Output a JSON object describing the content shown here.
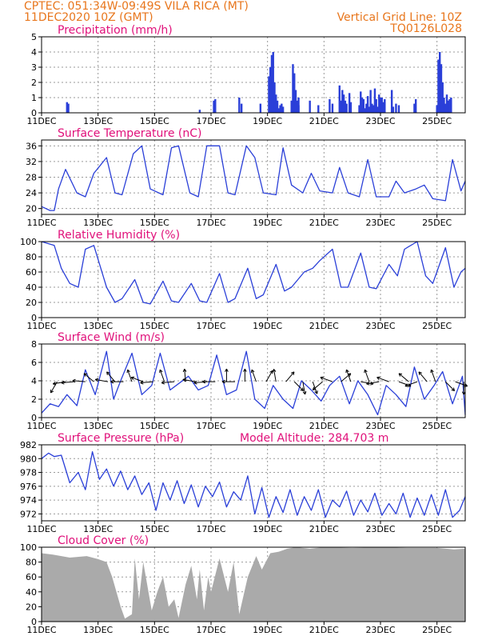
{
  "header": {
    "line1": "CPTEC:  051:34W-09:49S  VILA RICA (MT)",
    "line2": "11DEC2020 10Z (GMT)",
    "grid_note": "Vertical Grid Line: 10Z",
    "code": "TQ0126L028"
  },
  "colors": {
    "header": "#e8761c",
    "title": "#e0107a",
    "series": "#2a3fd8",
    "cloud": "#aaaaaa",
    "arrow": "#000000"
  },
  "chart_data": [
    {
      "id": "precip",
      "type": "bar",
      "title": "Precipitation (mm/h)",
      "ylim": [
        0,
        5
      ],
      "yticks": [
        0,
        1,
        2,
        3,
        4,
        5
      ],
      "xlim_days": [
        11.0,
        26.0
      ],
      "xtick_days": [
        11,
        13,
        15,
        17,
        19,
        21,
        23,
        25
      ],
      "xtick_labels": [
        "11DEC",
        "13DEC",
        "15DEC",
        "17DEC",
        "19DEC",
        "21DEC",
        "23DEC",
        "25DEC"
      ],
      "x": [
        11.9,
        11.95,
        16.6,
        17.1,
        17.15,
        18.0,
        18.08,
        18.75,
        19.05,
        19.1,
        19.15,
        19.2,
        19.25,
        19.3,
        19.35,
        19.4,
        19.45,
        19.5,
        19.55,
        19.85,
        19.9,
        19.95,
        20.0,
        20.05,
        20.1,
        20.1,
        20.5,
        20.8,
        21.2,
        21.3,
        21.55,
        21.6,
        21.65,
        21.7,
        21.75,
        21.8,
        21.9,
        21.95,
        22.25,
        22.3,
        22.35,
        22.4,
        22.45,
        22.5,
        22.55,
        22.6,
        22.65,
        22.7,
        22.75,
        22.8,
        22.85,
        22.9,
        22.95,
        23.0,
        23.05,
        23.1,
        23.15,
        23.4,
        23.45,
        23.55,
        23.65,
        24.2,
        24.25,
        25.0,
        25.05,
        25.1,
        25.15,
        25.2,
        25.25,
        25.3,
        25.35,
        25.4,
        25.45,
        25.5
      ],
      "values": [
        0.7,
        0.6,
        0.2,
        0.8,
        0.9,
        1.0,
        0.6,
        0.6,
        2.4,
        3.0,
        3.8,
        4.0,
        2.0,
        1.2,
        0.8,
        0.3,
        0.5,
        0.6,
        0.4,
        0.8,
        3.2,
        2.6,
        1.5,
        0.8,
        1.0,
        0.5,
        0.8,
        0.5,
        0.9,
        0.6,
        1.8,
        0.8,
        1.5,
        1.2,
        0.8,
        0.6,
        1.3,
        0.7,
        0.5,
        1.4,
        1.0,
        0.9,
        0.3,
        0.6,
        1.1,
        0.4,
        1.5,
        0.6,
        0.5,
        1.6,
        0.9,
        0.4,
        1.2,
        1.0,
        1.0,
        0.7,
        0.9,
        1.5,
        0.4,
        0.6,
        0.5,
        0.6,
        0.9,
        0.5,
        3.5,
        4.0,
        3.2,
        2.0,
        1.0,
        0.6,
        1.2,
        0.8,
        0.9,
        1.0
      ]
    },
    {
      "id": "temp",
      "type": "line",
      "title": "Surface Temperature (nC)",
      "ylim": [
        18.5,
        37.5
      ],
      "yticks": [
        20,
        24,
        28,
        32,
        36
      ],
      "xlim_days": [
        11.0,
        26.0
      ],
      "xtick_days": [
        11,
        13,
        15,
        17,
        19,
        21,
        23,
        25
      ],
      "xtick_labels": [
        "11DEC",
        "13DEC",
        "15DEC",
        "17DEC",
        "19DEC",
        "21DEC",
        "23DEC",
        "25DEC"
      ],
      "x": [
        11.0,
        11.3,
        11.45,
        11.6,
        11.85,
        12.25,
        12.55,
        12.85,
        13.3,
        13.6,
        13.85,
        14.25,
        14.55,
        14.85,
        15.3,
        15.6,
        15.85,
        16.25,
        16.55,
        16.85,
        17.3,
        17.6,
        17.85,
        18.25,
        18.55,
        18.85,
        19.3,
        19.55,
        19.85,
        20.25,
        20.55,
        20.85,
        21.3,
        21.55,
        21.85,
        22.25,
        22.55,
        22.85,
        23.3,
        23.55,
        23.85,
        24.25,
        24.55,
        24.85,
        25.3,
        25.55,
        25.85,
        26.0
      ],
      "values": [
        20.5,
        19.5,
        19.5,
        25.0,
        30.0,
        24.0,
        23.0,
        29.0,
        33.0,
        24.0,
        23.5,
        34.0,
        36.0,
        25.0,
        23.5,
        35.5,
        36.0,
        24.0,
        23.0,
        36.0,
        36.0,
        24.0,
        23.5,
        36.0,
        33.0,
        24.0,
        23.5,
        35.5,
        26.0,
        24.0,
        29.0,
        24.5,
        24.0,
        30.5,
        24.0,
        23.0,
        32.5,
        23.0,
        23.0,
        27.0,
        24.0,
        25.0,
        26.0,
        22.5,
        22.0,
        32.5,
        24.5,
        27.0
      ]
    },
    {
      "id": "rh",
      "type": "line",
      "title": "Relative Humidity (%)",
      "ylim": [
        0,
        100
      ],
      "yticks": [
        0,
        20,
        40,
        60,
        80,
        100
      ],
      "xlim_days": [
        11.0,
        26.0
      ],
      "xtick_days": [
        11,
        13,
        15,
        17,
        19,
        21,
        23,
        25
      ],
      "xtick_labels": [
        "11DEC",
        "13DEC",
        "15DEC",
        "17DEC",
        "19DEC",
        "21DEC",
        "23DEC",
        "25DEC"
      ],
      "x": [
        11.0,
        11.45,
        11.7,
        12.0,
        12.3,
        12.55,
        12.85,
        13.3,
        13.6,
        13.85,
        14.3,
        14.6,
        14.85,
        15.3,
        15.6,
        15.85,
        16.3,
        16.6,
        16.85,
        17.3,
        17.6,
        17.85,
        18.3,
        18.6,
        18.85,
        19.3,
        19.6,
        19.85,
        20.3,
        20.6,
        20.85,
        21.3,
        21.6,
        21.85,
        22.3,
        22.6,
        22.85,
        23.3,
        23.6,
        23.85,
        24.3,
        24.6,
        24.85,
        25.3,
        25.6,
        25.85,
        26.0
      ],
      "values": [
        100.0,
        95.0,
        65.0,
        45.0,
        40.0,
        90.0,
        95.0,
        40.0,
        20.0,
        25.0,
        50.0,
        20.0,
        18.0,
        48.0,
        22.0,
        20.0,
        45.0,
        22.0,
        20.0,
        58.0,
        20.0,
        25.0,
        65.0,
        25.0,
        30.0,
        70.0,
        35.0,
        40.0,
        60.0,
        65.0,
        75.0,
        90.0,
        40.0,
        40.0,
        85.0,
        40.0,
        38.0,
        70.0,
        55.0,
        90.0,
        100.0,
        55.0,
        45.0,
        92.0,
        40.0,
        60.0,
        65.0
      ]
    },
    {
      "id": "wind",
      "type": "line",
      "title": "Surface Wind (m/s)",
      "ylim": [
        0,
        8
      ],
      "yticks": [
        0,
        2,
        4,
        6,
        8
      ],
      "xlim_days": [
        11.0,
        26.0
      ],
      "xtick_days": [
        11,
        13,
        15,
        17,
        19,
        21,
        23,
        25
      ],
      "xtick_labels": [
        "11DEC",
        "13DEC",
        "15DEC",
        "17DEC",
        "19DEC",
        "21DEC",
        "23DEC",
        "25DEC"
      ],
      "x": [
        11.0,
        11.3,
        11.6,
        11.9,
        12.25,
        12.55,
        12.9,
        13.3,
        13.55,
        13.8,
        14.2,
        14.55,
        14.9,
        15.2,
        15.55,
        15.9,
        16.2,
        16.55,
        16.9,
        17.2,
        17.55,
        17.9,
        18.25,
        18.55,
        18.9,
        19.2,
        19.55,
        19.9,
        20.2,
        20.55,
        20.9,
        21.2,
        21.55,
        21.9,
        22.2,
        22.55,
        22.9,
        23.2,
        23.55,
        23.9,
        24.2,
        24.55,
        24.9,
        25.2,
        25.55,
        25.9,
        26.0
      ],
      "values": [
        0.5,
        1.5,
        1.2,
        2.5,
        1.3,
        5.2,
        2.5,
        7.2,
        2.0,
        4.0,
        7.0,
        2.5,
        3.5,
        7.0,
        3.0,
        3.8,
        4.5,
        3.0,
        3.5,
        6.8,
        2.5,
        3.0,
        7.2,
        2.0,
        1.0,
        3.5,
        2.0,
        1.0,
        4.0,
        3.0,
        1.8,
        3.5,
        4.5,
        1.5,
        4.0,
        2.5,
        0.3,
        3.5,
        2.5,
        1.2,
        5.5,
        2.0,
        3.5,
        5.0,
        1.5,
        4.5,
        0.3
      ],
      "arrows_x": [
        11.55,
        11.85,
        12.15,
        12.55,
        12.85,
        13.35,
        13.6,
        13.9,
        14.2,
        14.6,
        14.95,
        15.35,
        15.7,
        16.1,
        16.45,
        16.85,
        17.15,
        17.55,
        17.85,
        18.2,
        18.6,
        18.95,
        19.3,
        19.65,
        19.95,
        20.25,
        20.6,
        20.95,
        21.3,
        21.6,
        21.95,
        22.3,
        22.6,
        22.95,
        23.3,
        23.65,
        24.0,
        24.3,
        24.65,
        24.95,
        25.3,
        25.65,
        25.95
      ],
      "arrows_dir_deg": [
        120,
        170,
        175,
        185,
        220,
        190,
        230,
        180,
        250,
        200,
        175,
        250,
        175,
        265,
        190,
        175,
        180,
        270,
        180,
        270,
        250,
        300,
        260,
        310,
        45,
        80,
        70,
        140,
        200,
        320,
        250,
        10,
        250,
        170,
        200,
        20,
        220,
        160,
        230,
        250,
        45,
        20,
        90
      ]
    },
    {
      "id": "pres",
      "type": "line",
      "title": "Surface Pressure (hPa)",
      "annotation": "Model Altitude: 284.703 m",
      "ylim": [
        971,
        982
      ],
      "yticks": [
        972,
        974,
        976,
        978,
        980,
        982
      ],
      "xlim_days": [
        11.0,
        26.0
      ],
      "xtick_days": [
        11,
        13,
        15,
        17,
        19,
        21,
        23,
        25
      ],
      "xtick_labels": [
        "11DEC",
        "13DEC",
        "15DEC",
        "17DEC",
        "19DEC",
        "21DEC",
        "23DEC",
        "25DEC"
      ],
      "x": [
        11.0,
        11.25,
        11.45,
        11.7,
        12.0,
        12.3,
        12.55,
        12.8,
        13.05,
        13.3,
        13.55,
        13.8,
        14.05,
        14.3,
        14.55,
        14.8,
        15.05,
        15.3,
        15.55,
        15.8,
        16.05,
        16.3,
        16.55,
        16.8,
        17.05,
        17.3,
        17.55,
        17.8,
        18.05,
        18.3,
        18.55,
        18.8,
        19.05,
        19.3,
        19.55,
        19.8,
        20.05,
        20.3,
        20.55,
        20.8,
        21.05,
        21.3,
        21.55,
        21.8,
        22.05,
        22.3,
        22.55,
        22.8,
        23.05,
        23.3,
        23.55,
        23.8,
        24.05,
        24.3,
        24.55,
        24.8,
        25.05,
        25.3,
        25.55,
        25.8,
        26.0
      ],
      "values": [
        980.0,
        980.8,
        980.3,
        980.5,
        976.5,
        978.0,
        975.5,
        981.0,
        977.0,
        978.5,
        976.0,
        978.2,
        975.5,
        977.5,
        974.8,
        976.5,
        972.5,
        976.5,
        974.0,
        976.8,
        973.5,
        976.2,
        973.0,
        976.0,
        974.5,
        976.6,
        973.0,
        975.2,
        974.0,
        977.5,
        972.0,
        975.8,
        971.5,
        974.5,
        972.2,
        975.5,
        971.8,
        974.5,
        972.5,
        975.5,
        971.5,
        974.0,
        973.0,
        975.3,
        971.8,
        974.0,
        972.3,
        975.0,
        971.8,
        973.5,
        972.0,
        975.0,
        971.5,
        974.3,
        971.8,
        974.8,
        971.8,
        975.5,
        971.5,
        972.5,
        974.5
      ]
    },
    {
      "id": "cloud",
      "type": "area",
      "title": "Cloud Cover (%)",
      "ylim": [
        0,
        100
      ],
      "yticks": [
        0,
        20,
        40,
        60,
        80,
        100
      ],
      "xlim_days": [
        11.0,
        26.0
      ],
      "xtick_days": [
        11,
        13,
        15,
        17,
        19,
        21,
        23,
        25
      ],
      "xtick_labels": [
        "11DEC",
        "13DEC",
        "15DEC",
        "17DEC",
        "19DEC",
        "21DEC",
        "23DEC",
        "25DEC"
      ],
      "x": [
        11.0,
        11.4,
        12.0,
        12.6,
        13.0,
        13.3,
        13.5,
        13.8,
        13.95,
        14.2,
        14.3,
        14.45,
        14.6,
        14.9,
        15.1,
        15.3,
        15.5,
        15.7,
        15.85,
        16.1,
        16.3,
        16.5,
        16.6,
        16.75,
        16.9,
        17.0,
        17.3,
        17.6,
        17.8,
        18.0,
        18.3,
        18.6,
        18.8,
        19.1,
        19.4,
        19.7,
        20.0,
        20.5,
        21.0,
        22.0,
        23.0,
        24.0,
        25.0,
        25.6,
        26.0
      ],
      "values": [
        92,
        90,
        86,
        88,
        84,
        80,
        60,
        20,
        4,
        10,
        85,
        30,
        80,
        15,
        40,
        60,
        20,
        30,
        5,
        50,
        75,
        30,
        70,
        15,
        60,
        40,
        85,
        40,
        80,
        10,
        60,
        88,
        70,
        92,
        94,
        98,
        100,
        98,
        100,
        99,
        100,
        99,
        99,
        97,
        98
      ]
    }
  ]
}
